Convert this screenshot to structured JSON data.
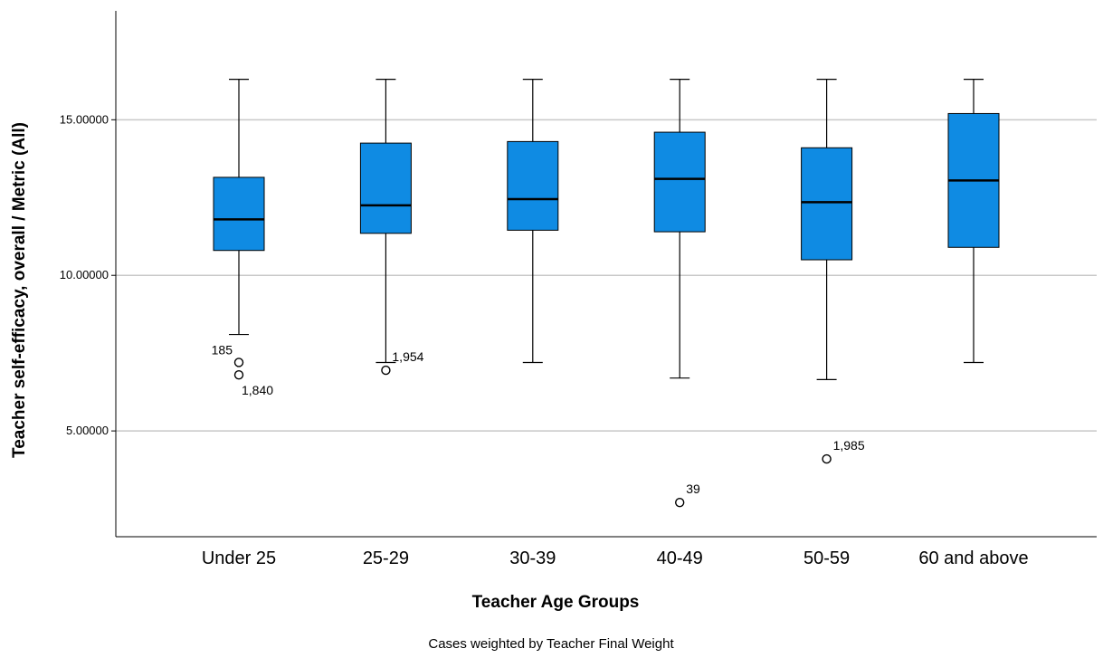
{
  "chart_data": {
    "type": "boxplot",
    "xlabel": "Teacher Age Groups",
    "ylabel": "Teacher self-efficacy, overall / Metric (All)",
    "footnote": "Cases weighted by Teacher Final Weight",
    "ylim": [
      1.6,
      18.5
    ],
    "yticks": [
      5.0,
      10.0,
      15.0
    ],
    "ytick_labels": [
      "5.00000",
      "10.00000",
      "15.00000"
    ],
    "grid": true,
    "colors": {
      "box": "#0f8be3",
      "outline": "#000000",
      "grid": "#c8c8c8"
    },
    "categories": [
      "Under 25",
      "25-29",
      "30-39",
      "40-49",
      "50-59",
      "60 and above"
    ],
    "boxes": [
      {
        "category": "Under 25",
        "whisker_low": 8.1,
        "q1": 10.8,
        "median": 11.8,
        "q3": 13.15,
        "whisker_high": 16.3,
        "outliers": [
          {
            "value": 7.2,
            "label": "185",
            "label_side": "left-above"
          },
          {
            "value": 6.8,
            "label": "1,840",
            "label_side": "right-below"
          }
        ]
      },
      {
        "category": "25-29",
        "whisker_low": 7.2,
        "q1": 11.35,
        "median": 12.25,
        "q3": 14.25,
        "whisker_high": 16.3,
        "outliers": [
          {
            "value": 6.95,
            "label": "1,954",
            "label_side": "right-above"
          }
        ]
      },
      {
        "category": "30-39",
        "whisker_low": 7.2,
        "q1": 11.45,
        "median": 12.45,
        "q3": 14.3,
        "whisker_high": 16.3,
        "outliers": []
      },
      {
        "category": "40-49",
        "whisker_low": 6.7,
        "q1": 11.4,
        "median": 13.1,
        "q3": 14.6,
        "whisker_high": 16.3,
        "outliers": [
          {
            "value": 2.7,
            "label": "39",
            "label_side": "right-above"
          }
        ]
      },
      {
        "category": "50-59",
        "whisker_low": 6.65,
        "q1": 10.5,
        "median": 12.35,
        "q3": 14.1,
        "whisker_high": 16.3,
        "outliers": [
          {
            "value": 4.1,
            "label": "1,985",
            "label_side": "right-above"
          }
        ]
      },
      {
        "category": "60 and above",
        "whisker_low": 7.2,
        "q1": 10.9,
        "median": 13.05,
        "q3": 15.2,
        "whisker_high": 16.3,
        "outliers": []
      }
    ]
  }
}
